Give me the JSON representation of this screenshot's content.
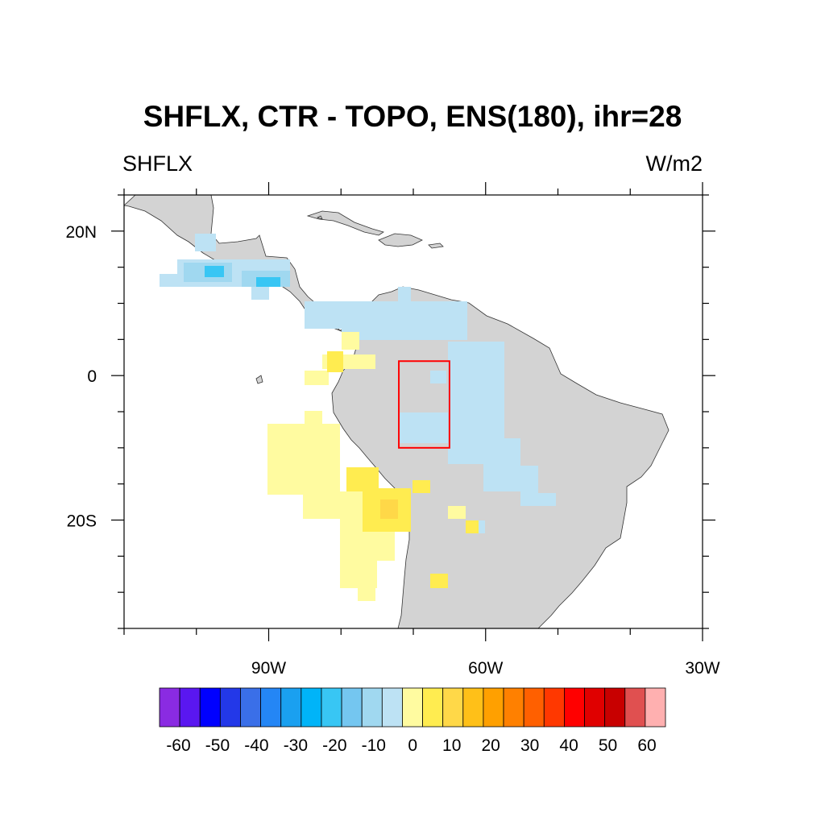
{
  "title": "SHFLX, CTR - TOPO, ENS(180), ihr=28",
  "left_subtitle": "SHFLX",
  "right_subtitle": "W/m2",
  "map": {
    "lon_range": [
      -110,
      -30
    ],
    "lat_range": [
      -35,
      25
    ],
    "x_ticks": [
      {
        "value": -90,
        "label": "90W"
      },
      {
        "value": -60,
        "label": "60W"
      },
      {
        "value": -30,
        "label": "30W"
      }
    ],
    "y_ticks": [
      {
        "value": 20,
        "label": "20N"
      },
      {
        "value": 0,
        "label": "0"
      },
      {
        "value": -20,
        "label": "20S"
      }
    ],
    "land_color": "#d3d3d3",
    "box_color": "#ff0000",
    "analysis_box": {
      "lon": [
        -72,
        -65
      ],
      "lat": [
        -10,
        2
      ]
    }
  },
  "colorbar": {
    "labels": [
      "-60",
      "-50",
      "-40",
      "-30",
      "-20",
      "-10",
      "0",
      "10",
      "20",
      "30",
      "40",
      "50",
      "60"
    ],
    "colors": [
      "#8a2be2",
      "#5a17f0",
      "#0000ff",
      "#2338e8",
      "#3a6fe8",
      "#2486f5",
      "#1aa0f0",
      "#00b4f8",
      "#38c6f4",
      "#74c6f0",
      "#a0d8f0",
      "#bde2f4",
      "#fffba0",
      "#ffec50",
      "#ffd848",
      "#ffc018",
      "#ffa000",
      "#ff8000",
      "#ff6000",
      "#ff3800",
      "#ff0000",
      "#e00000",
      "#c80000",
      "#e05050",
      "#ffb0b0"
    ]
  }
}
